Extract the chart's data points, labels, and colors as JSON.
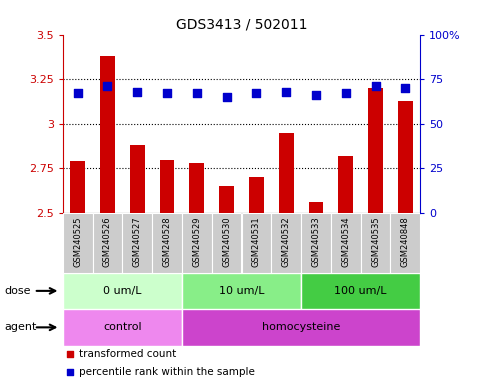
{
  "title": "GDS3413 / 502011",
  "samples": [
    "GSM240525",
    "GSM240526",
    "GSM240527",
    "GSM240528",
    "GSM240529",
    "GSM240530",
    "GSM240531",
    "GSM240532",
    "GSM240533",
    "GSM240534",
    "GSM240535",
    "GSM240848"
  ],
  "transformed_count": [
    2.79,
    3.38,
    2.88,
    2.8,
    2.78,
    2.65,
    2.7,
    2.95,
    2.56,
    2.82,
    3.2,
    3.13
  ],
  "percentile_rank": [
    67,
    71,
    68,
    67,
    67,
    65,
    67,
    68,
    66,
    67,
    71,
    70
  ],
  "ylim_left": [
    2.5,
    3.5
  ],
  "ylim_right": [
    0,
    100
  ],
  "yticks_left": [
    2.5,
    2.75,
    3.0,
    3.25,
    3.5
  ],
  "yticks_right": [
    0,
    25,
    50,
    75,
    100
  ],
  "ytick_labels_left": [
    "2.5",
    "2.75",
    "3",
    "3.25",
    "3.5"
  ],
  "ytick_labels_right": [
    "0",
    "25",
    "50",
    "75",
    "100%"
  ],
  "hlines": [
    2.75,
    3.0,
    3.25
  ],
  "bar_color": "#cc0000",
  "dot_color": "#0000cc",
  "bar_width": 0.5,
  "dot_size": 35,
  "dose_groups": [
    {
      "label": "0 um/L",
      "start": 0,
      "end": 4,
      "color": "#ccffcc"
    },
    {
      "label": "10 um/L",
      "start": 4,
      "end": 8,
      "color": "#88ee88"
    },
    {
      "label": "100 um/L",
      "start": 8,
      "end": 12,
      "color": "#44cc44"
    }
  ],
  "agent_groups": [
    {
      "label": "control",
      "start": 0,
      "end": 4,
      "color": "#ee88ee"
    },
    {
      "label": "homocysteine",
      "start": 4,
      "end": 12,
      "color": "#cc44cc"
    }
  ],
  "dose_label": "dose",
  "agent_label": "agent",
  "legend_items": [
    {
      "label": "transformed count",
      "color": "#cc0000"
    },
    {
      "label": "percentile rank within the sample",
      "color": "#0000cc"
    }
  ],
  "sample_box_color": "#cccccc",
  "left_axis_color": "#cc0000",
  "right_axis_color": "#0000cc",
  "title_fontsize": 10,
  "axis_fontsize": 8,
  "sample_fontsize": 6,
  "annot_fontsize": 8,
  "legend_fontsize": 7.5
}
